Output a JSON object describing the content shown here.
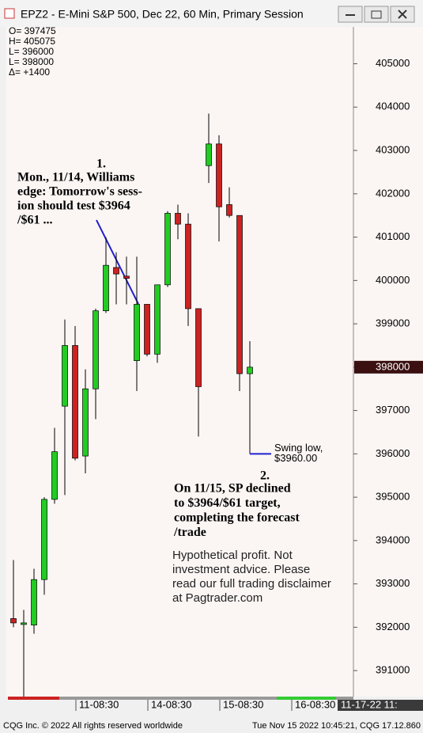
{
  "chart_data": {
    "type": "candlestick",
    "title": "EPZ2 - E-Mini S&P 500, Dec 22, 60 Min, Primary Session",
    "ohlc_box": [
      "O= 397475",
      "H= 405075",
      "L= 396000",
      "L= 398000",
      "Δ=   +1400"
    ],
    "open": [
      392200,
      392100,
      392050,
      393100,
      394950,
      397100,
      398500,
      395950,
      397500,
      399300,
      400300,
      400100,
      398150,
      399450,
      398300,
      399900,
      401550,
      401300,
      399350,
      402650,
      403150,
      401750,
      401500,
      397850
    ],
    "high": [
      393550,
      392400,
      393350,
      395000,
      396600,
      399100,
      398950,
      397950,
      399350,
      401000,
      400650,
      400550,
      400550,
      399450,
      399900,
      401600,
      401750,
      401550,
      399350,
      403850,
      403350,
      402150,
      401500,
      398600
    ],
    "low": [
      392000,
      390400,
      391850,
      392750,
      394850,
      395050,
      395850,
      395550,
      396800,
      399250,
      399450,
      399450,
      397450,
      398250,
      398100,
      399850,
      400950,
      398950,
      396400,
      402250,
      400900,
      401450,
      397450,
      396000
    ],
    "close": [
      392100,
      392100,
      393100,
      394950,
      396050,
      398500,
      395900,
      397500,
      399300,
      400350,
      400150,
      400050,
      399450,
      398300,
      399900,
      401550,
      401300,
      399350,
      397550,
      403150,
      401700,
      401500,
      397850,
      398000
    ],
    "up_color": "#22cc22",
    "down_color": "#cc2222",
    "ylim": [
      390400,
      405850
    ],
    "yticks": [
      391000,
      392000,
      393000,
      394000,
      395000,
      396000,
      397000,
      398000,
      399000,
      400000,
      401000,
      402000,
      403000,
      404000,
      405000
    ],
    "last": 398000,
    "xticks": [
      {
        "value": 6,
        "label": "11-08:30"
      },
      {
        "value": 13,
        "label": "14-08:30"
      },
      {
        "value": 20,
        "label": "15-08:30"
      },
      {
        "value": 27,
        "label": "16-08:30"
      }
    ],
    "current_date": "11-17-22 11:",
    "swing_low": {
      "value": 396000,
      "lines": [
        "Swing low,",
        "$3960.00"
      ]
    },
    "annotation_1": {
      "number": "1.",
      "lines": [
        "Mon., 11/14, Williams",
        "edge: Tomorrow's sess-",
        "ion should test $3964",
        "/$61 ..."
      ]
    },
    "annotation_2": {
      "number": "2.",
      "lines": [
        "On 11/15, SP declined",
        "to $3964/$61 target,",
        "completing the forecast",
        "/trade"
      ]
    },
    "disclaimer": [
      "Hypothetical profit. Not",
      "investment advice. Please",
      "read our full trading disclaimer",
      "at Pagtrader.com"
    ],
    "footer_left": "CQG Inc. © 2022 All rights reserved worldwide",
    "footer_right": "Tue Nov 15 2022 10:45:21, CQG 17.12.860"
  }
}
